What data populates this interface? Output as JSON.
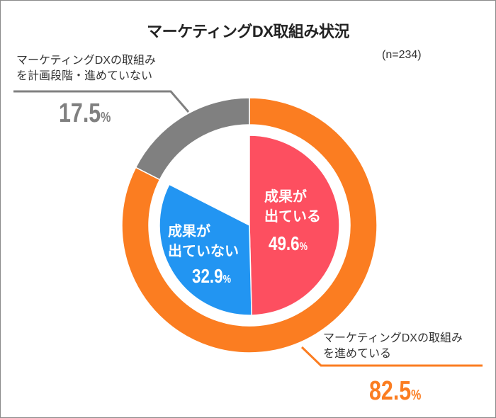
{
  "chart_data": {
    "type": "pie",
    "title": "マーケティングDX取組み状況",
    "note": "(n=234)",
    "outer": [
      {
        "name": "マーケティングDXの取組みを進めている",
        "value": 82.5,
        "color": "#fb7d21"
      },
      {
        "name": "マーケティングDXの取組みを計画段階・進めていない",
        "value": 17.5,
        "color": "#808080"
      }
    ],
    "inner": [
      {
        "name": "成果が出ている",
        "value": 49.6,
        "color": "#fd4f60"
      },
      {
        "name": "成果が出ていない",
        "value": 32.9,
        "color": "#2295f2"
      }
    ]
  },
  "labels": {
    "planning_line1": "マーケティングDXの取組み",
    "planning_line2": "を計画段階・進めていない",
    "planning_value": "17.5",
    "doing_line1": "マーケティングDXの取組み",
    "doing_line2": "を進めている",
    "doing_value": "82.5",
    "result_yes_line1": "成果が",
    "result_yes_line2": "出ている",
    "result_yes_value": "49.6",
    "result_no_line1": "成果が",
    "result_no_line2": "出ていない",
    "result_no_value": "32.9",
    "percent": "%"
  }
}
